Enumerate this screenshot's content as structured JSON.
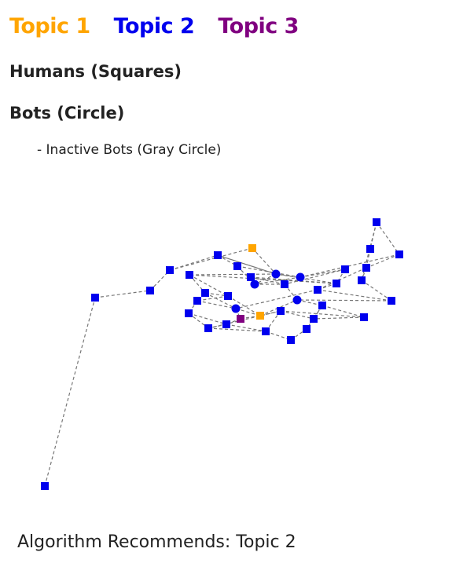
{
  "legend": {
    "topics": [
      {
        "label": "Topic 1",
        "color": "#FFA500"
      },
      {
        "label": "Topic 2",
        "color": "#0000EE"
      },
      {
        "label": "Topic 3",
        "color": "#800080"
      }
    ],
    "humans": "Humans (Squares)",
    "bots": "Bots (Circle)",
    "inactive": "- Inactive Bots (Gray Circle)"
  },
  "recommendation": "Algorithm Recommends: Topic 2",
  "network": {
    "edge_color": "#777777",
    "nodes": [
      {
        "id": "n1",
        "shape": "square",
        "topic": 2
      },
      {
        "id": "n2",
        "shape": "square",
        "topic": 2
      },
      {
        "id": "n3",
        "shape": "square",
        "topic": 2
      },
      {
        "id": "n4",
        "shape": "square",
        "topic": 2
      },
      {
        "id": "n5",
        "shape": "square",
        "topic": 1
      },
      {
        "id": "n6",
        "shape": "square",
        "topic": 2
      },
      {
        "id": "n7",
        "shape": "square",
        "topic": 2
      },
      {
        "id": "n8",
        "shape": "square",
        "topic": 2
      },
      {
        "id": "n9",
        "shape": "square",
        "topic": 2
      },
      {
        "id": "n10",
        "shape": "square",
        "topic": 2
      },
      {
        "id": "n11",
        "shape": "square",
        "topic": 2
      },
      {
        "id": "n12",
        "shape": "square",
        "topic": 2
      },
      {
        "id": "n13",
        "shape": "circle",
        "topic": 2
      },
      {
        "id": "n14",
        "shape": "circle",
        "topic": 2
      },
      {
        "id": "n15",
        "shape": "circle",
        "topic": 2
      },
      {
        "id": "n16",
        "shape": "square",
        "topic": 2
      },
      {
        "id": "n17",
        "shape": "square",
        "topic": 2
      },
      {
        "id": "n18",
        "shape": "square",
        "topic": 2
      },
      {
        "id": "n19",
        "shape": "square",
        "topic": 2
      },
      {
        "id": "n20",
        "shape": "square",
        "topic": 2
      },
      {
        "id": "n21",
        "shape": "square",
        "topic": 2
      },
      {
        "id": "n22",
        "shape": "square",
        "topic": 2
      },
      {
        "id": "n23",
        "shape": "square",
        "topic": 2
      },
      {
        "id": "n24",
        "shape": "square",
        "topic": 2
      },
      {
        "id": "n25",
        "shape": "square",
        "topic": 2
      },
      {
        "id": "n26",
        "shape": "circle",
        "topic": 2
      },
      {
        "id": "n27",
        "shape": "square",
        "topic": 3
      },
      {
        "id": "n28",
        "shape": "square",
        "topic": 1
      },
      {
        "id": "n29",
        "shape": "circle",
        "topic": 2
      },
      {
        "id": "n30",
        "shape": "square",
        "topic": 2
      },
      {
        "id": "n31",
        "shape": "square",
        "topic": 2
      },
      {
        "id": "n32",
        "shape": "square",
        "topic": 2
      },
      {
        "id": "n33",
        "shape": "square",
        "topic": 2
      },
      {
        "id": "n34",
        "shape": "square",
        "topic": 2
      },
      {
        "id": "n35",
        "shape": "square",
        "topic": 2
      },
      {
        "id": "n36",
        "shape": "square",
        "topic": 2
      },
      {
        "id": "n37",
        "shape": "square",
        "topic": 2
      }
    ],
    "edges": [
      [
        "n1",
        "n2"
      ],
      [
        "n2",
        "n3"
      ],
      [
        "n3",
        "n4"
      ],
      [
        "n4",
        "n5"
      ],
      [
        "n4",
        "n6"
      ],
      [
        "n5",
        "n13"
      ],
      [
        "n6",
        "n7"
      ],
      [
        "n6",
        "n13"
      ],
      [
        "n7",
        "n15"
      ],
      [
        "n8",
        "n9"
      ],
      [
        "n8",
        "n10"
      ],
      [
        "n8",
        "n12"
      ],
      [
        "n9",
        "n11"
      ],
      [
        "n10",
        "n11"
      ],
      [
        "n10",
        "n14"
      ],
      [
        "n11",
        "n12"
      ],
      [
        "n11",
        "n24"
      ],
      [
        "n12",
        "n25"
      ],
      [
        "n13",
        "n14"
      ],
      [
        "n13",
        "n15"
      ],
      [
        "n13",
        "n20"
      ],
      [
        "n13",
        "n6"
      ],
      [
        "n14",
        "n15"
      ],
      [
        "n14",
        "n16"
      ],
      [
        "n15",
        "n17"
      ],
      [
        "n15",
        "n18"
      ],
      [
        "n16",
        "n17"
      ],
      [
        "n16",
        "n19"
      ],
      [
        "n17",
        "n18"
      ],
      [
        "n17",
        "n29"
      ],
      [
        "n18",
        "n19"
      ],
      [
        "n19",
        "n20"
      ],
      [
        "n19",
        "n24"
      ],
      [
        "n20",
        "n21"
      ],
      [
        "n20",
        "n22"
      ],
      [
        "n21",
        "n22"
      ],
      [
        "n21",
        "n26"
      ],
      [
        "n22",
        "n23"
      ],
      [
        "n22",
        "n28"
      ],
      [
        "n23",
        "n26"
      ],
      [
        "n23",
        "n30"
      ],
      [
        "n24",
        "n25"
      ],
      [
        "n24",
        "n26"
      ],
      [
        "n25",
        "n29"
      ],
      [
        "n26",
        "n27"
      ],
      [
        "n26",
        "n28"
      ],
      [
        "n27",
        "n28"
      ],
      [
        "n27",
        "n31"
      ],
      [
        "n28",
        "n29"
      ],
      [
        "n28",
        "n33"
      ],
      [
        "n29",
        "n36"
      ],
      [
        "n30",
        "n31"
      ],
      [
        "n30",
        "n32"
      ],
      [
        "n31",
        "n32"
      ],
      [
        "n32",
        "n33"
      ],
      [
        "n33",
        "n34"
      ],
      [
        "n33",
        "n35"
      ],
      [
        "n34",
        "n35"
      ],
      [
        "n35",
        "n36"
      ],
      [
        "n36",
        "n37"
      ],
      [
        "n36",
        "n34"
      ],
      [
        "n19",
        "n13"
      ],
      [
        "n7",
        "n14"
      ]
    ]
  }
}
